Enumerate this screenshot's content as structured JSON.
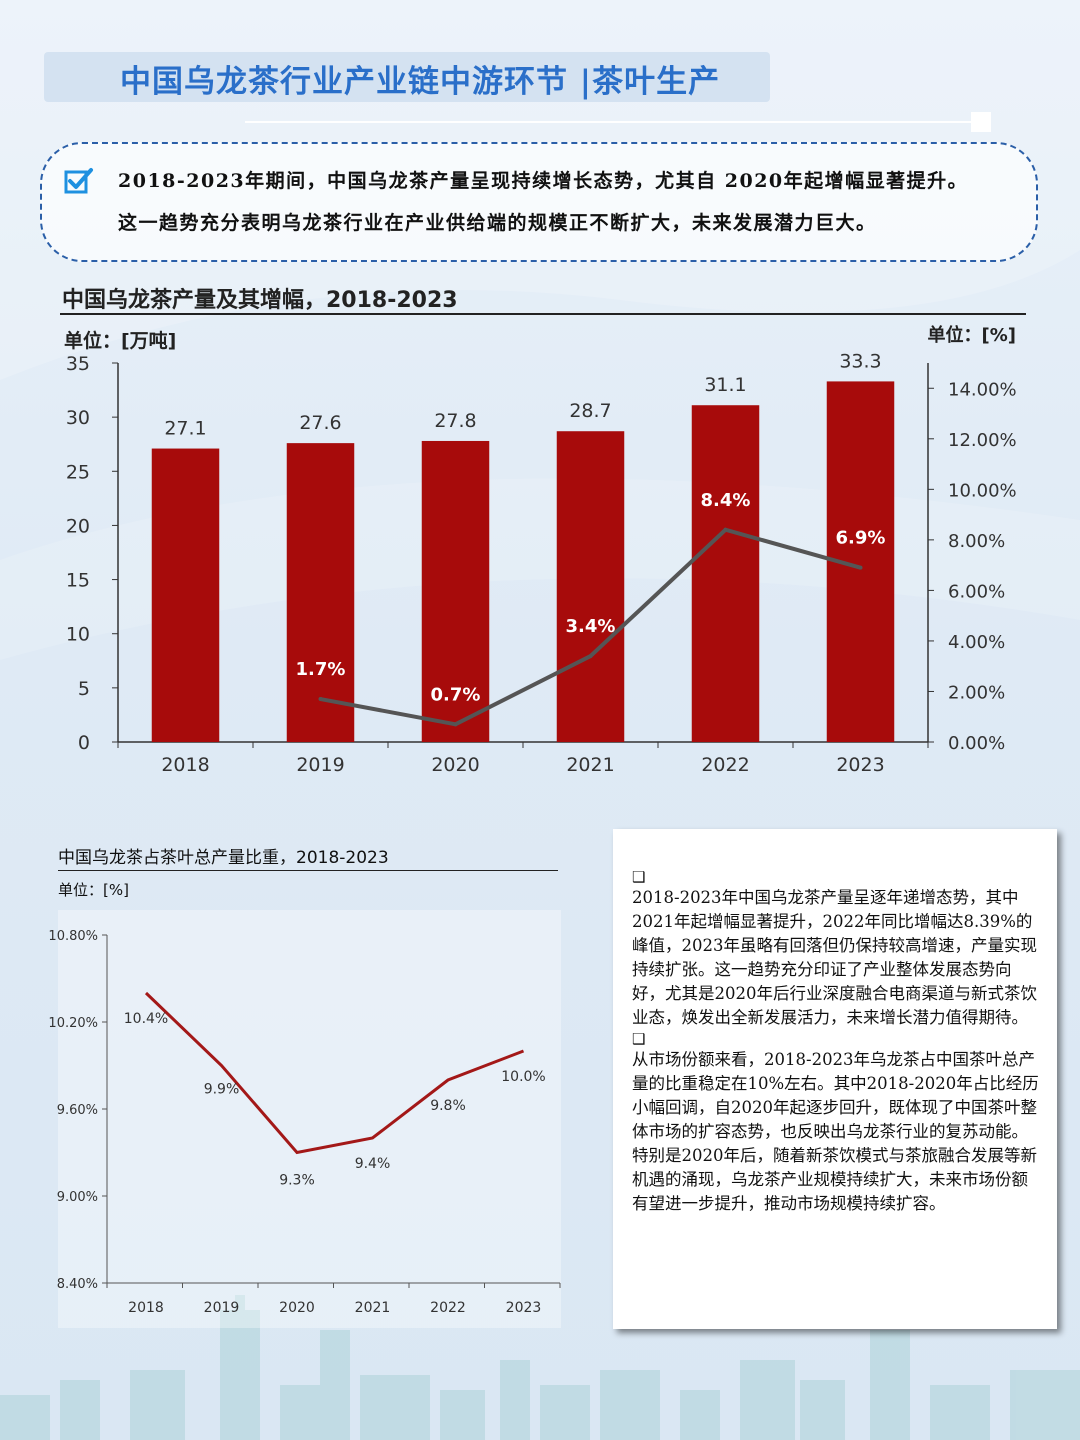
{
  "header": {
    "title": "中国乌龙茶行业产业链中游环节 |茶叶生产"
  },
  "summary": {
    "icon": "checkbox-check-icon",
    "line1": "2018-2023年期间，中国乌龙茶产量呈现持续增长态势，尤其自 2020年起增幅显著提升。",
    "line2": "这一趋势充分表明乌龙茶行业在产业供给端的规模正不断扩大，未来发展潜力巨大。"
  },
  "colors": {
    "title": "#2a6fc9",
    "bar": "#a70b0b",
    "growth_line": "#555555",
    "share_line": "#a31818",
    "summary_border": "#2b5fa8",
    "check": "#1e90e0"
  },
  "chart_data": [
    {
      "type": "bar",
      "title": "中国乌龙茶产量及其增幅，2018-2023",
      "ylabel_left": "单位：[万吨]",
      "ylabel_right": "单位：[%]",
      "categories": [
        "2018",
        "2019",
        "2020",
        "2021",
        "2022",
        "2023"
      ],
      "series": [
        {
          "type": "bar",
          "values": [
            27.1,
            27.6,
            27.8,
            28.7,
            31.1,
            33.3
          ],
          "labels": [
            "27.1",
            "27.6",
            "27.8",
            "28.7",
            "31.1",
            "33.3"
          ],
          "axis": "left"
        },
        {
          "type": "line",
          "x": [
            "2019",
            "2020",
            "2021",
            "2022",
            "2023"
          ],
          "values": [
            1.7,
            0.7,
            3.4,
            8.4,
            6.9
          ],
          "labels": [
            "1.7%",
            "0.7%",
            "3.4%",
            "8.4%",
            "6.9%"
          ],
          "axis": "right"
        }
      ],
      "ylim_left": [
        0,
        35
      ],
      "yticks_left": [
        "0",
        "5",
        "10",
        "15",
        "20",
        "25",
        "30",
        "35"
      ],
      "ylim_right": [
        0,
        15
      ],
      "yticks_right": [
        "0.00%",
        "2.00%",
        "4.00%",
        "6.00%",
        "8.00%",
        "10.00%",
        "12.00%",
        "14.00%"
      ],
      "grid": false
    },
    {
      "type": "line",
      "title": "中国乌龙茶占茶叶总产量比重，2018-2023",
      "ylabel": "单位：[%]",
      "categories": [
        "2018",
        "2019",
        "2020",
        "2021",
        "2022",
        "2023"
      ],
      "values": [
        10.4,
        9.9,
        9.3,
        9.4,
        9.8,
        10.0
      ],
      "labels": [
        "10.4%",
        "9.9%",
        "9.3%",
        "9.4%",
        "9.8%",
        "10.0%"
      ],
      "ylim": [
        8.4,
        10.8
      ],
      "yticks": [
        "8.40%",
        "9.00%",
        "9.60%",
        "10.20%",
        "10.80%"
      ],
      "grid": false
    }
  ],
  "panel": {
    "bullet_icon": "checkbox-empty-icon",
    "bullet": "❑",
    "para1": "2018-2023年中国乌龙茶产量呈逐年递增态势，其中2021年起增幅显著提升，2022年同比增幅达8.39%的峰值，2023年虽略有回落但仍保持较高增速，产量实现持续扩张。这一趋势充分印证了产业整体发展态势向好，尤其是2020年后行业深度融合电商渠道与新式茶饮业态，焕发出全新发展活力，未来增长潜力值得期待。",
    "para2": "从市场份额来看，2018-2023年乌龙茶占中国茶叶总产量的比重稳定在10%左右。其中2018-2020年占比经历小幅回调，自2020年起逐步回升，既体现了中国茶叶整体市场的扩容态势，也反映出乌龙茶行业的复苏动能。特别是2020年后，随着新茶饮模式与茶旅融合发展等新机遇的涌现，乌龙茶产业规模持续扩大，未来市场份额有望进一步提升，推动市场规模持续扩容。"
  }
}
